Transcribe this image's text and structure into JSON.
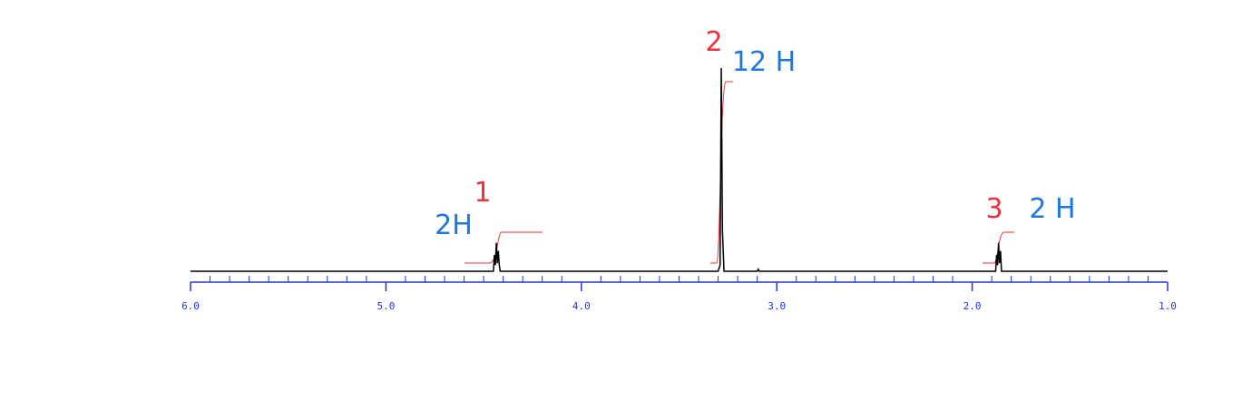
{
  "chart_data": {
    "type": "line",
    "x": [
      6.0,
      4.45,
      4.445,
      4.44,
      4.435,
      4.43,
      4.425,
      4.42,
      4.415,
      3.3,
      3.29,
      3.284,
      3.278,
      3.27,
      3.1,
      3.095,
      3.09,
      1.88,
      1.875,
      1.87,
      1.865,
      1.86,
      1.855,
      1.85,
      1.0
    ],
    "values": [
      0,
      0,
      8,
      3,
      14,
      4,
      10,
      3,
      0,
      0,
      3,
      100,
      20,
      0,
      0,
      1,
      0,
      0,
      8,
      3,
      14,
      4,
      10,
      0,
      0
    ],
    "color": "#000000",
    "axis_color": "#2233dd",
    "xlim": [
      6.0,
      1.0
    ],
    "ylim": [
      0,
      100
    ],
    "xticks": [
      {
        "value": 6,
        "label": "6.0"
      },
      {
        "value": 5,
        "label": "5.0"
      },
      {
        "value": 4,
        "label": "4.0"
      },
      {
        "value": 3,
        "label": "3.0"
      },
      {
        "value": 2,
        "label": "2.0"
      },
      {
        "value": 1,
        "label": "1.0"
      }
    ],
    "xminorticks": [
      5.9,
      5.8,
      5.7,
      5.6,
      5.5,
      5.4,
      5.3,
      5.2,
      5.1,
      4.9,
      4.8,
      4.7,
      4.6,
      4.5,
      4.4,
      4.3,
      4.2,
      4.1,
      3.9,
      3.8,
      3.7,
      3.6,
      3.5,
      3.4,
      3.3,
      3.2,
      3.1,
      2.9,
      2.8,
      2.7,
      2.6,
      2.5,
      2.4,
      2.3,
      2.2,
      2.1,
      1.9,
      1.8,
      1.7,
      1.6,
      1.5,
      1.4,
      1.3,
      1.2,
      1.1
    ],
    "annotations": [
      {
        "text": "1",
        "color": "#e8323c"
      },
      {
        "text": "2H",
        "color": "#1e78dc"
      },
      {
        "text": "2",
        "color": "#e8323c"
      },
      {
        "text": "12 H",
        "color": "#1e78dc"
      },
      {
        "text": "3",
        "color": "#e8323c"
      },
      {
        "text": "2 H",
        "color": "#1e78dc"
      }
    ]
  }
}
